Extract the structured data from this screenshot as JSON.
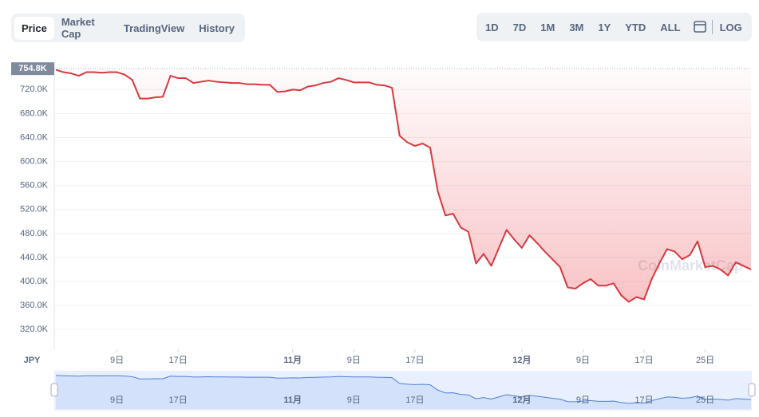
{
  "tabs": [
    "Price",
    "Market Cap",
    "TradingView",
    "History"
  ],
  "ranges": [
    "1D",
    "7D",
    "1M",
    "3M",
    "1Y",
    "YTD",
    "ALL",
    "LOG"
  ],
  "chart_data": {
    "type": "line",
    "y_axis_label": "JPY",
    "watermark": "CoinMarketCap",
    "color": "#d8393e",
    "navigator_color": "#4f7fd8",
    "reference": {
      "value": 754800,
      "label": "754.8K"
    },
    "categories": [
      null,
      null,
      null,
      null,
      null,
      null,
      null,
      null,
      "9日",
      null,
      null,
      null,
      null,
      null,
      null,
      null,
      "17日",
      null,
      null,
      null,
      null,
      null,
      null,
      null,
      null,
      null,
      null,
      null,
      null,
      null,
      null,
      "11月",
      null,
      null,
      null,
      null,
      null,
      null,
      null,
      "9日",
      null,
      null,
      null,
      null,
      null,
      null,
      null,
      "17日",
      null,
      null,
      null,
      null,
      null,
      null,
      null,
      null,
      null,
      null,
      null,
      null,
      null,
      "12月",
      null,
      null,
      null,
      null,
      null,
      null,
      null,
      "9日",
      null,
      null,
      null,
      null,
      null,
      null,
      null,
      "17日",
      null,
      null,
      null,
      null,
      null,
      null,
      null,
      "25日",
      null,
      null,
      null,
      null,
      null,
      null
    ],
    "values": [
      753000,
      749000,
      747000,
      743000,
      749000,
      749000,
      748000,
      749000,
      749000,
      745000,
      736000,
      705000,
      705000,
      707000,
      708000,
      743000,
      739000,
      739000,
      731000,
      733000,
      735000,
      733000,
      732000,
      731000,
      731000,
      729000,
      729000,
      728000,
      728000,
      716000,
      717000,
      720000,
      719000,
      725000,
      727000,
      731000,
      733000,
      739000,
      736000,
      732000,
      732000,
      732000,
      728000,
      727000,
      723000,
      643000,
      632000,
      626000,
      630000,
      623000,
      550000,
      510000,
      513000,
      490000,
      483000,
      430000,
      446000,
      426000,
      456000,
      486000,
      470000,
      456000,
      477000,
      464000,
      450000,
      437000,
      424000,
      390000,
      388000,
      397000,
      404000,
      393000,
      393000,
      397000,
      377000,
      366000,
      374000,
      370000,
      404000,
      430000,
      454000,
      450000,
      437000,
      444000,
      467000,
      424000,
      426000,
      420000,
      410000,
      432000,
      426000,
      420000
    ],
    "ylim": [
      287000,
      763000
    ],
    "yticks": [
      {
        "value": 320000,
        "label": "320.0K"
      },
      {
        "value": 360000,
        "label": "360.0K"
      },
      {
        "value": 400000,
        "label": "400.0K"
      },
      {
        "value": 440000,
        "label": "440.0K"
      },
      {
        "value": 480000,
        "label": "480.0K"
      },
      {
        "value": 520000,
        "label": "520.0K"
      },
      {
        "value": 560000,
        "label": "560.0K"
      },
      {
        "value": 600000,
        "label": "600.0K"
      },
      {
        "value": 640000,
        "label": "640.0K"
      },
      {
        "value": 680000,
        "label": "680.0K"
      },
      {
        "value": 720000,
        "label": "720.0K"
      }
    ],
    "grid": true
  }
}
